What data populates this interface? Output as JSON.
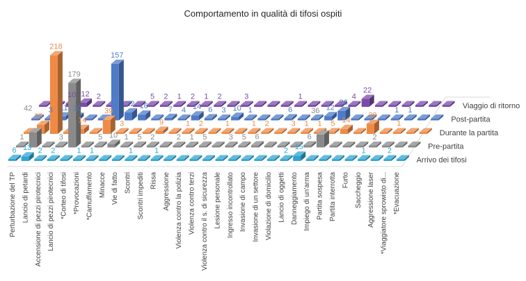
{
  "chart_data": {
    "type": "bar",
    "title": "Comportamento in qualità di tifosi ospiti",
    "categories": [
      "Perturbazione del TP",
      "Lancio di petardi",
      "Accensione di pezzi pirotecnici",
      "Lancio di pezzi pirotecnici",
      "*Corteo di tifosi",
      "*Provocazioni",
      "*Camuffamento",
      "Minacce",
      "Vie di fatto",
      "Scontri",
      "Scontri impediti",
      "Rissa",
      "Aggressione",
      "Violenza contro la polizia",
      "Violenza contro terzi",
      "Violenza contro il s. di sicurezza",
      "Lesione personale",
      "Ingresso incontrollato",
      "Invasione di campo",
      "Invasione di un settore",
      "Violazione di domicilio",
      "Lancio di oggetti",
      "Danneggiamento",
      "Impiego di un'arma",
      "Partita sospesa",
      "Partita interrotta",
      "Furto",
      "Saccheggio",
      "Aggressione laser",
      "*Viaggiatore sprowisto di...",
      "*Evacuazione"
    ],
    "series": [
      {
        "name": "Arrivo dei tifosi",
        "color": "#2ea6d3",
        "values": [
          6,
          13,
          2,
          2,
          0,
          1,
          1,
          0,
          0,
          1,
          0,
          1,
          0,
          0,
          0,
          0,
          0,
          0,
          0,
          0,
          0,
          2,
          15,
          0,
          0,
          0,
          0,
          1,
          0,
          2,
          0
        ]
      },
      {
        "name": "Pre-partita",
        "color": "#8a8a8a",
        "values": [
          1,
          42,
          0,
          3,
          179,
          0,
          5,
          10,
          1,
          5,
          2,
          0,
          2,
          1,
          5,
          0,
          3,
          5,
          6,
          0,
          0,
          0,
          6,
          36,
          0,
          0,
          0,
          2,
          0,
          0,
          0
        ]
      },
      {
        "name": "Durante la partita",
        "color": "#ee8a45",
        "values": [
          0,
          25,
          218,
          0,
          14,
          0,
          39,
          3,
          0,
          0,
          9,
          0,
          1,
          2,
          0,
          1,
          0,
          1,
          2,
          0,
          3,
          1,
          1,
          5,
          14,
          0,
          28,
          0,
          1,
          0,
          0
        ]
      },
      {
        "name": "Post-partita",
        "color": "#4f7bc8",
        "values": [
          0,
          3,
          11,
          10,
          0,
          0,
          157,
          22,
          16,
          0,
          7,
          4,
          14,
          6,
          3,
          10,
          1,
          0,
          0,
          6,
          0,
          0,
          12,
          26,
          0,
          0,
          0,
          1,
          1,
          0,
          0
        ]
      },
      {
        "name": "Viaggio di ritorno",
        "color": "#7b4aa9",
        "values": [
          0,
          0,
          10,
          12,
          2,
          0,
          0,
          0,
          5,
          2,
          1,
          2,
          1,
          2,
          0,
          3,
          0,
          0,
          0,
          1,
          0,
          0,
          0,
          4,
          22,
          0,
          0,
          0,
          0,
          0,
          0
        ]
      }
    ],
    "grid": false,
    "legend": "none (series labelled along depth axis, right)"
  }
}
